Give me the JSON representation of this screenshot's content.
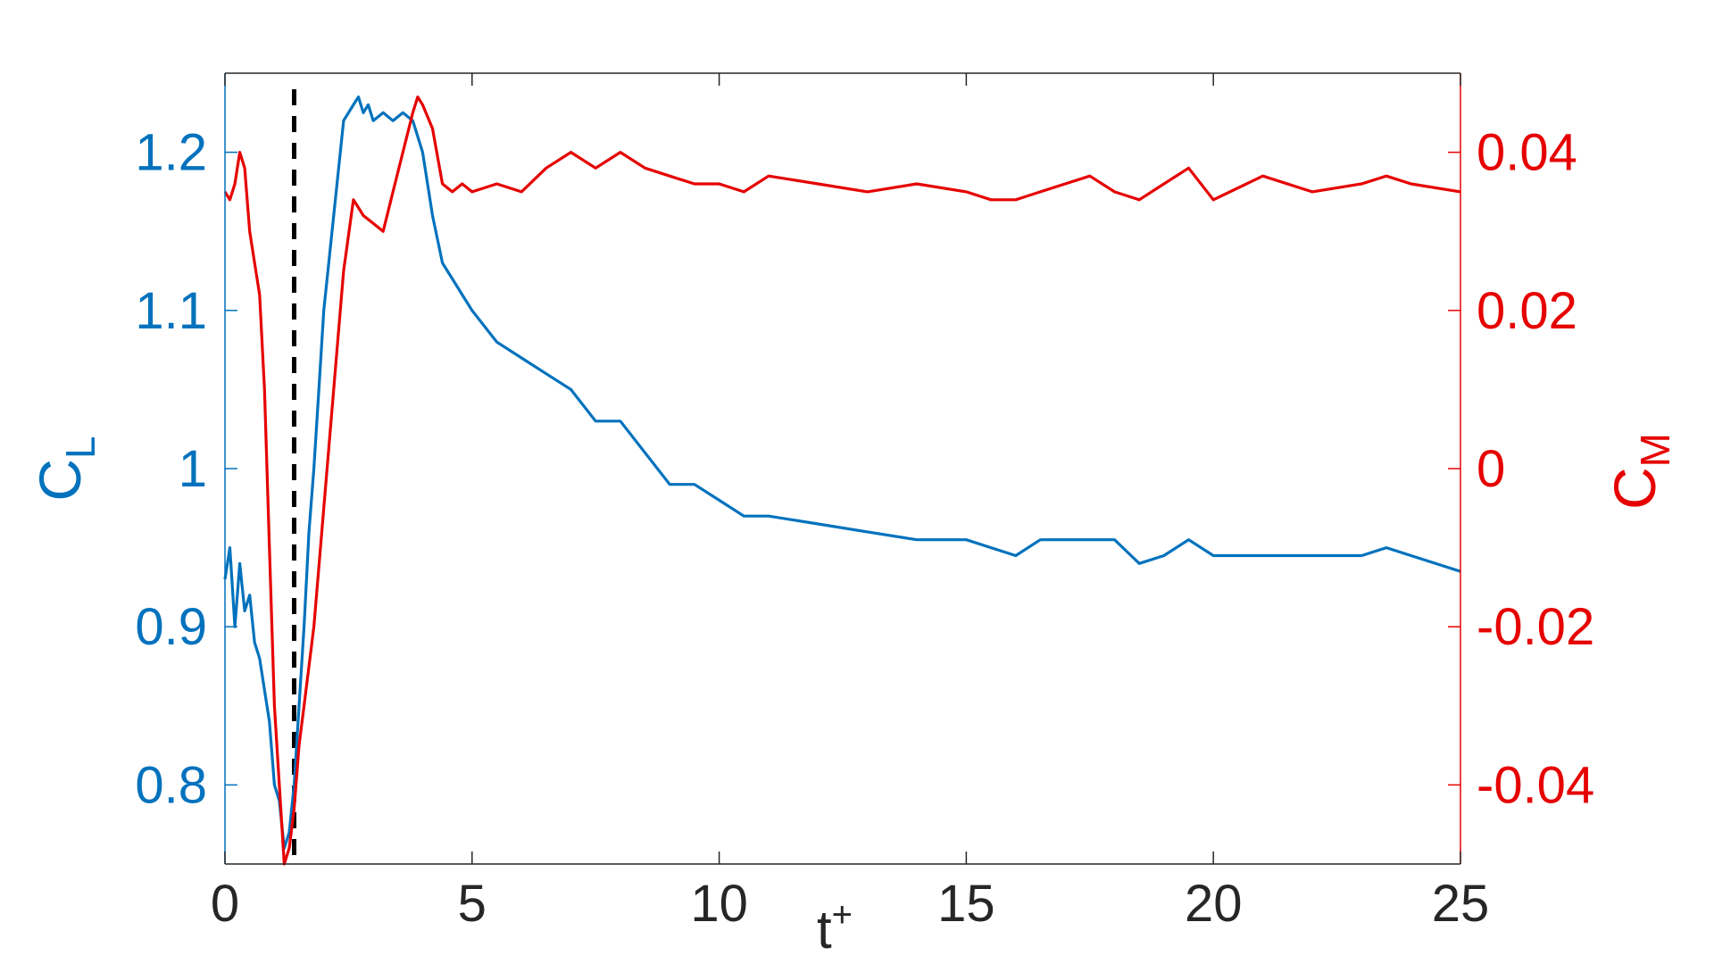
{
  "chart_data": {
    "type": "line",
    "xlabel": "t",
    "xlabel_sup": "+",
    "x_ticks": [
      0,
      5,
      10,
      15,
      20,
      25
    ],
    "x_tick_labels": [
      "0",
      "5",
      "10",
      "15",
      "20",
      "25"
    ],
    "xlim": [
      0,
      25
    ],
    "y_left": {
      "label_main": "C",
      "label_sub": "L",
      "ylim": [
        0.75,
        1.25
      ],
      "ticks": [
        0.8,
        0.9,
        1.0,
        1.1,
        1.2
      ],
      "tick_labels": [
        "0.8",
        "0.9",
        "1",
        "1.1",
        "1.2"
      ]
    },
    "y_right": {
      "label_main": "C",
      "label_sub": "M",
      "ylim": [
        -0.05,
        0.05
      ],
      "ticks": [
        -0.04,
        -0.02,
        0,
        0.02,
        0.04
      ],
      "tick_labels": [
        "-0.04",
        "-0.02",
        "0",
        "0.02",
        "0.04"
      ]
    },
    "vertical_marker_x": 1.4,
    "grid": false,
    "colors": {
      "cl": "#0072BD",
      "cm": "#E60000",
      "marker": "#000000",
      "axis_left": "#0072BD",
      "axis_right": "#E60000",
      "axis_bottom": "#262626"
    },
    "series": [
      {
        "axis": "left",
        "x": [
          0,
          0.1,
          0.2,
          0.3,
          0.4,
          0.5,
          0.6,
          0.7,
          0.8,
          0.9,
          1.0,
          1.1,
          1.2,
          1.3,
          1.4,
          1.5,
          1.6,
          1.7,
          1.8,
          1.9,
          2.0,
          2.2,
          2.4,
          2.6,
          2.7,
          2.8,
          2.9,
          3.0,
          3.2,
          3.4,
          3.6,
          3.8,
          3.9,
          4.0,
          4.2,
          4.4,
          4.6,
          4.8,
          5.0,
          5.5,
          6.0,
          6.5,
          7.0,
          7.5,
          8.0,
          8.5,
          9.0,
          9.5,
          10.0,
          10.5,
          11.0,
          12.0,
          13.0,
          14.0,
          15.0,
          15.5,
          16.0,
          16.5,
          17.0,
          17.5,
          18.0,
          18.5,
          19.0,
          19.5,
          20.0,
          21.0,
          22.0,
          23.0,
          23.5,
          24.0,
          25.0
        ],
        "y": [
          0.93,
          0.95,
          0.9,
          0.94,
          0.91,
          0.92,
          0.89,
          0.88,
          0.86,
          0.84,
          0.8,
          0.79,
          0.76,
          0.77,
          0.8,
          0.85,
          0.9,
          0.96,
          1.0,
          1.05,
          1.1,
          1.16,
          1.22,
          1.23,
          1.235,
          1.225,
          1.23,
          1.22,
          1.225,
          1.22,
          1.225,
          1.22,
          1.21,
          1.2,
          1.16,
          1.13,
          1.12,
          1.11,
          1.1,
          1.08,
          1.07,
          1.06,
          1.05,
          1.03,
          1.03,
          1.01,
          0.99,
          0.99,
          0.98,
          0.97,
          0.97,
          0.965,
          0.96,
          0.955,
          0.955,
          0.95,
          0.945,
          0.955,
          0.955,
          0.955,
          0.955,
          0.94,
          0.945,
          0.955,
          0.945,
          0.945,
          0.945,
          0.945,
          0.95,
          0.945,
          0.935
        ]
      },
      {
        "axis": "right",
        "x": [
          0,
          0.1,
          0.2,
          0.3,
          0.4,
          0.5,
          0.6,
          0.7,
          0.8,
          0.9,
          1.0,
          1.1,
          1.2,
          1.3,
          1.4,
          1.5,
          1.6,
          1.8,
          2.0,
          2.2,
          2.4,
          2.6,
          2.7,
          2.8,
          3.0,
          3.2,
          3.4,
          3.6,
          3.8,
          3.9,
          4.0,
          4.2,
          4.4,
          4.6,
          4.8,
          5.0,
          5.5,
          6.0,
          6.5,
          7.0,
          7.5,
          8.0,
          8.5,
          9.0,
          9.5,
          10.0,
          10.5,
          11.0,
          12.0,
          13.0,
          14.0,
          15.0,
          15.5,
          16.0,
          16.5,
          17.0,
          17.5,
          18.0,
          18.5,
          19.0,
          19.5,
          20.0,
          21.0,
          22.0,
          23.0,
          23.5,
          24.0,
          25.0
        ],
        "y": [
          0.035,
          0.034,
          0.036,
          0.04,
          0.038,
          0.03,
          0.026,
          0.022,
          0.01,
          -0.01,
          -0.03,
          -0.04,
          -0.05,
          -0.048,
          -0.043,
          -0.035,
          -0.03,
          -0.02,
          -0.005,
          0.01,
          0.025,
          0.034,
          0.033,
          0.032,
          0.031,
          0.03,
          0.035,
          0.04,
          0.045,
          0.047,
          0.046,
          0.043,
          0.036,
          0.035,
          0.036,
          0.035,
          0.036,
          0.035,
          0.038,
          0.04,
          0.038,
          0.04,
          0.038,
          0.037,
          0.036,
          0.036,
          0.035,
          0.037,
          0.036,
          0.035,
          0.036,
          0.035,
          0.034,
          0.034,
          0.035,
          0.036,
          0.037,
          0.035,
          0.034,
          0.036,
          0.038,
          0.034,
          0.037,
          0.035,
          0.036,
          0.037,
          0.036,
          0.035
        ]
      }
    ]
  }
}
